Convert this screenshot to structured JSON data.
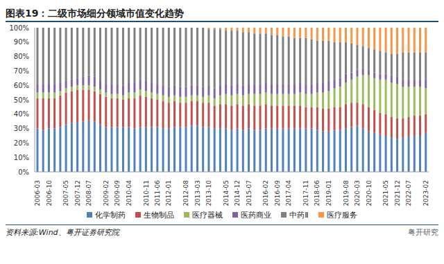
{
  "chart_data": {
    "type": "bar",
    "stacked": true,
    "title": "图表19：二级市场细分领域市值变化趋势",
    "annotations": [
      "资料来源:Wind、粤开证券研究院",
      "粤开研究"
    ],
    "legend": "bottom",
    "grid": false,
    "categories": [
      "2006-03",
      null,
      "2006-10",
      null,
      null,
      "2007-05",
      null,
      "2007-12",
      null,
      "2008-07",
      null,
      null,
      "2009-02",
      null,
      "2009-09",
      null,
      "2010-04",
      null,
      null,
      "2010-11",
      null,
      "2011-06",
      null,
      "2012-01",
      null,
      null,
      "2012-08",
      null,
      "2013-03",
      null,
      "2013-10",
      null,
      null,
      "2014-05",
      null,
      "2014-12",
      null,
      "2015-07",
      null,
      null,
      "2016-02",
      null,
      "2016-09",
      null,
      "2017-04",
      null,
      null,
      "2017-11",
      null,
      "2018-06",
      null,
      "2019-01",
      null,
      null,
      "2019-08",
      null,
      "2020-03",
      null,
      "2020-10",
      null,
      null,
      "2021-05",
      null,
      "2021-12",
      null,
      "2022-07",
      null,
      null,
      "2023-02"
    ],
    "ylim": [
      0,
      100
    ],
    "yticks": [
      {
        "value": 0,
        "label": "0%"
      },
      {
        "value": 10,
        "label": "10%"
      },
      {
        "value": 20,
        "label": "20%"
      },
      {
        "value": 30,
        "label": "30%"
      },
      {
        "value": 40,
        "label": "40%"
      },
      {
        "value": 50,
        "label": "50%"
      },
      {
        "value": 60,
        "label": "60%"
      },
      {
        "value": 70,
        "label": "70%"
      },
      {
        "value": 80,
        "label": "80%"
      },
      {
        "value": 90,
        "label": "90%"
      },
      {
        "value": 100,
        "label": "100%"
      }
    ],
    "series": [
      {
        "name": "化学制药",
        "color": "#4f81bd",
        "values": [
          30,
          29,
          30,
          30,
          31,
          33,
          34,
          34,
          35,
          36,
          35,
          33,
          31,
          31,
          31,
          31,
          31,
          30,
          31,
          31,
          31,
          31,
          30,
          30,
          31,
          31,
          31,
          32,
          32,
          31,
          31,
          30,
          30,
          30,
          29,
          30,
          29,
          30,
          29,
          29,
          30,
          30,
          30,
          30,
          30,
          30,
          30,
          30,
          30,
          29,
          28,
          28,
          29,
          29,
          30,
          31,
          32,
          30,
          28,
          27,
          26,
          25,
          24,
          23,
          24,
          25,
          25,
          25,
          27
        ]
      },
      {
        "name": "生物制品",
        "color": "#c0504d",
        "values": [
          21,
          22,
          21,
          21,
          22,
          22,
          22,
          23,
          22,
          21,
          21,
          21,
          21,
          20,
          20,
          19,
          20,
          21,
          22,
          21,
          20,
          19,
          19,
          18,
          18,
          17,
          17,
          17,
          17,
          17,
          17,
          16,
          17,
          17,
          17,
          17,
          17,
          17,
          17,
          17,
          17,
          16,
          16,
          16,
          16,
          16,
          16,
          15,
          15,
          16,
          16,
          16,
          16,
          16,
          17,
          17,
          16,
          17,
          17,
          16,
          15,
          15,
          14,
          14,
          13,
          13,
          14,
          14,
          13
        ]
      },
      {
        "name": "医疗器械",
        "color": "#9bbb59",
        "values": [
          4,
          4,
          4,
          4,
          3,
          3,
          3,
          3,
          3,
          3,
          3,
          3,
          3,
          3,
          3,
          3,
          4,
          4,
          4,
          4,
          4,
          4,
          4,
          4,
          4,
          4,
          4,
          4,
          4,
          4,
          5,
          5,
          6,
          7,
          7,
          7,
          7,
          7,
          8,
          8,
          8,
          8,
          8,
          8,
          8,
          8,
          9,
          9,
          9,
          10,
          11,
          12,
          13,
          14,
          15,
          16,
          18,
          20,
          22,
          22,
          23,
          24,
          24,
          24,
          22,
          21,
          20,
          20,
          18
        ]
      },
      {
        "name": "医药商业",
        "color": "#8064a2",
        "values": [
          6,
          6,
          6,
          6,
          6,
          5,
          5,
          5,
          6,
          7,
          7,
          6,
          6,
          7,
          7,
          7,
          7,
          7,
          7,
          7,
          7,
          7,
          7,
          7,
          7,
          7,
          7,
          7,
          7,
          7,
          7,
          7,
          7,
          7,
          7,
          7,
          7,
          7,
          7,
          7,
          7,
          7,
          7,
          7,
          7,
          7,
          7,
          7,
          7,
          7,
          7,
          7,
          6,
          6,
          6,
          5,
          5,
          5,
          4,
          4,
          4,
          4,
          5,
          5,
          5,
          5,
          5,
          5,
          6
        ]
      },
      {
        "name": "中药Ⅱ",
        "color": "#7f7f7f",
        "values": [
          39,
          39,
          39,
          39,
          38,
          37,
          36,
          35,
          34,
          33,
          34,
          37,
          39,
          39,
          39,
          40,
          38,
          38,
          36,
          37,
          38,
          39,
          40,
          41,
          40,
          41,
          41,
          40,
          40,
          41,
          39,
          41,
          39,
          37,
          38,
          37,
          37,
          36,
          35,
          35,
          34,
          34,
          34,
          33,
          33,
          32,
          31,
          32,
          31,
          29,
          29,
          28,
          26,
          25,
          22,
          20,
          17,
          15,
          15,
          16,
          16,
          15,
          15,
          16,
          19,
          19,
          19,
          19,
          19
        ]
      },
      {
        "name": "医疗服务",
        "color": "#f79646",
        "values": [
          0,
          0,
          0,
          0,
          0,
          0,
          0,
          0,
          0,
          0,
          0,
          0,
          0,
          0,
          0,
          0,
          0,
          0,
          0,
          0,
          0,
          0,
          0,
          0,
          0,
          0,
          0,
          0,
          0,
          0,
          1,
          1,
          1,
          2,
          2,
          2,
          3,
          3,
          4,
          4,
          4,
          5,
          5,
          6,
          6,
          7,
          7,
          7,
          8,
          9,
          9,
          9,
          10,
          10,
          10,
          11,
          12,
          13,
          14,
          15,
          16,
          17,
          18,
          18,
          17,
          17,
          17,
          17,
          17
        ]
      }
    ]
  }
}
